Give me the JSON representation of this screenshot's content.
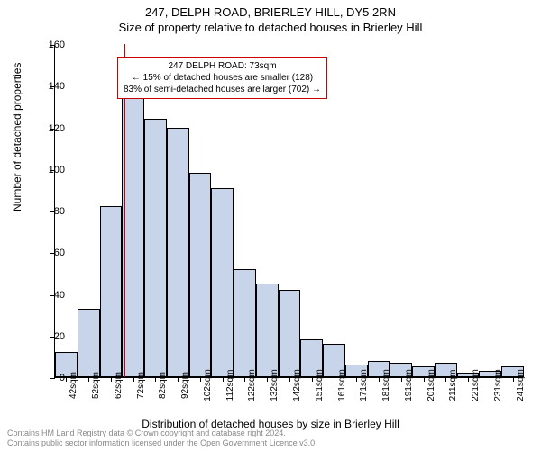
{
  "title_line1": "247, DELPH ROAD, BRIERLEY HILL, DY5 2RN",
  "title_line2": "Size of property relative to detached houses in Brierley Hill",
  "chart": {
    "type": "histogram",
    "bar_color": "#c8d4ea",
    "bar_border_color": "#000000",
    "background_color": "#ffffff",
    "ref_line_color": "#cc0000",
    "annotation_border_color": "#cc0000",
    "ylabel": "Number of detached properties",
    "xlabel": "Distribution of detached houses by size in Brierley Hill",
    "ylim": [
      0,
      160
    ],
    "ytick_step": 20,
    "categories": [
      "42sqm",
      "52sqm",
      "62sqm",
      "72sqm",
      "82sqm",
      "92sqm",
      "102sqm",
      "112sqm",
      "122sqm",
      "132sqm",
      "142sqm",
      "151sqm",
      "161sqm",
      "171sqm",
      "181sqm",
      "191sqm",
      "201sqm",
      "211sqm",
      "221sqm",
      "231sqm",
      "241sqm"
    ],
    "values": [
      12,
      33,
      82,
      138,
      124,
      120,
      98,
      91,
      52,
      45,
      42,
      18,
      16,
      6,
      8,
      7,
      5,
      7,
      2,
      3,
      5
    ],
    "ref_value_x": 73,
    "x_start": 42,
    "x_step": 10,
    "annotation": {
      "line1": "247 DELPH ROAD: 73sqm",
      "line2": "← 15% of detached houses are smaller (128)",
      "line3": "83% of semi-detached houses are larger (702) →"
    }
  },
  "footer_line1": "Contains HM Land Registry data © Crown copyright and database right 2024.",
  "footer_line2": "Contains public sector information licensed under the Open Government Licence v3.0."
}
